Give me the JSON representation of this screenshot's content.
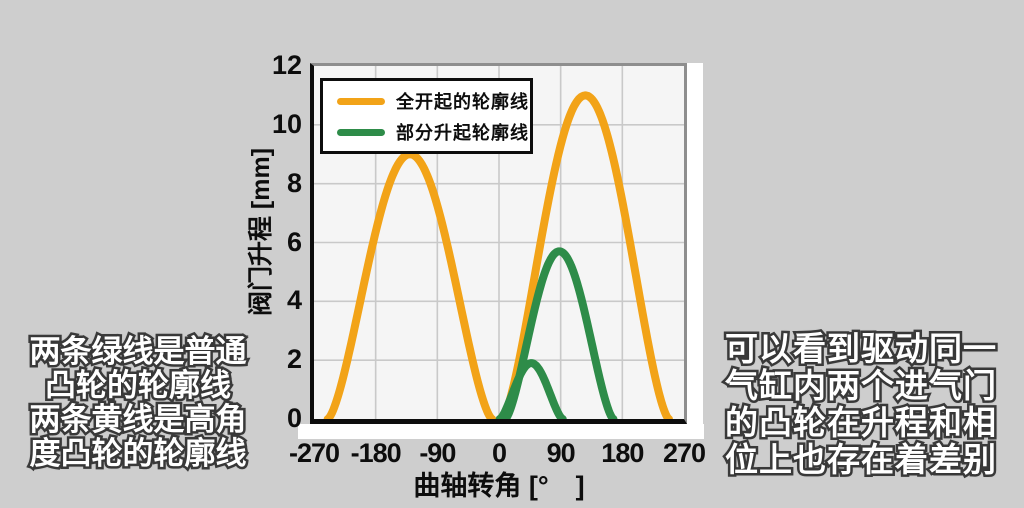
{
  "page": {
    "background": "#cecece"
  },
  "chart": {
    "panel_bg": "#ffffff",
    "plot_bg": "#f5f5f5",
    "grid_color": "#c9c9c9",
    "frame_color": "#8e8e8e",
    "axis_color": "#0d0d0d"
  },
  "chart_data": {
    "type": "line",
    "title": "",
    "xlabel": "曲轴转角 [°　]",
    "ylabel": "阀门升程 [mm]",
    "xlim": [
      -270,
      270
    ],
    "ylim": [
      0,
      12
    ],
    "x_ticks": [
      -270,
      -180,
      -90,
      0,
      90,
      180,
      270
    ],
    "y_ticks": [
      0,
      2,
      4,
      6,
      8,
      10,
      12
    ],
    "grid": true,
    "legend_position": "top-left",
    "series": [
      {
        "name": "全开起的轮廓线",
        "color": "#F2A318",
        "curves": [
          {
            "center_deg": -130,
            "half_width_deg": 120,
            "peak_mm": 9.0
          },
          {
            "center_deg": 126,
            "half_width_deg": 122,
            "peak_mm": 11.0
          }
        ]
      },
      {
        "name": "部分升起轮廓线",
        "color": "#2E8C49",
        "curves": [
          {
            "center_deg": 47,
            "half_width_deg": 46,
            "peak_mm": 1.9
          },
          {
            "center_deg": 88,
            "half_width_deg": 79,
            "peak_mm": 5.7
          }
        ]
      }
    ]
  },
  "annotations": {
    "left": {
      "lines": [
        "两条绿线是普通",
        "凸轮的轮廓线",
        "两条黄线是高角",
        "度凸轮的轮廓线"
      ]
    },
    "right": {
      "lines": [
        "可以看到驱动同一",
        "气缸内两个进气门",
        "的凸轮在升程和相",
        "位上也存在着差别"
      ]
    }
  }
}
